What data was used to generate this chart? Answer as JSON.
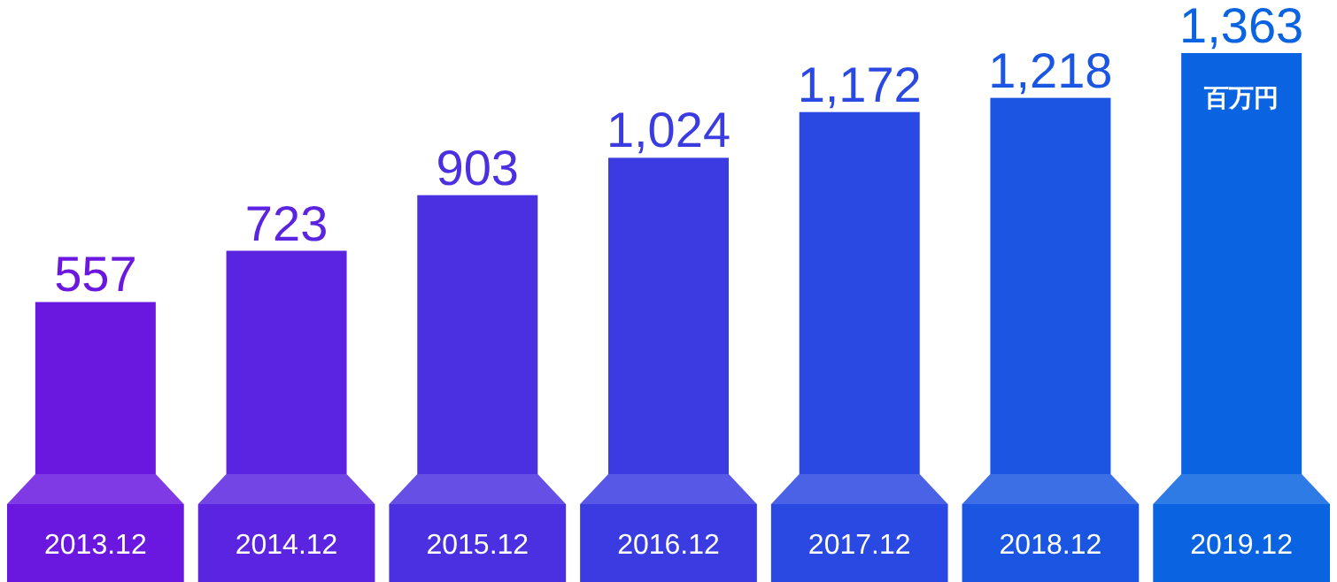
{
  "chart_data": {
    "type": "bar",
    "categories": [
      "2013.12",
      "2014.12",
      "2015.12",
      "2016.12",
      "2017.12",
      "2018.12",
      "2019.12"
    ],
    "values": [
      557,
      723,
      903,
      1024,
      1172,
      1218,
      1363
    ],
    "colors": [
      "#6a18e0",
      "#5a24e0",
      "#4a30e0",
      "#3a3ce2",
      "#2a48e2",
      "#1a56e2",
      "#0a64e2"
    ],
    "value_labels": [
      "557",
      "723",
      "903",
      "1,024",
      "1,172",
      "1,218",
      "1,363"
    ],
    "annotations": [
      "百万円"
    ]
  }
}
